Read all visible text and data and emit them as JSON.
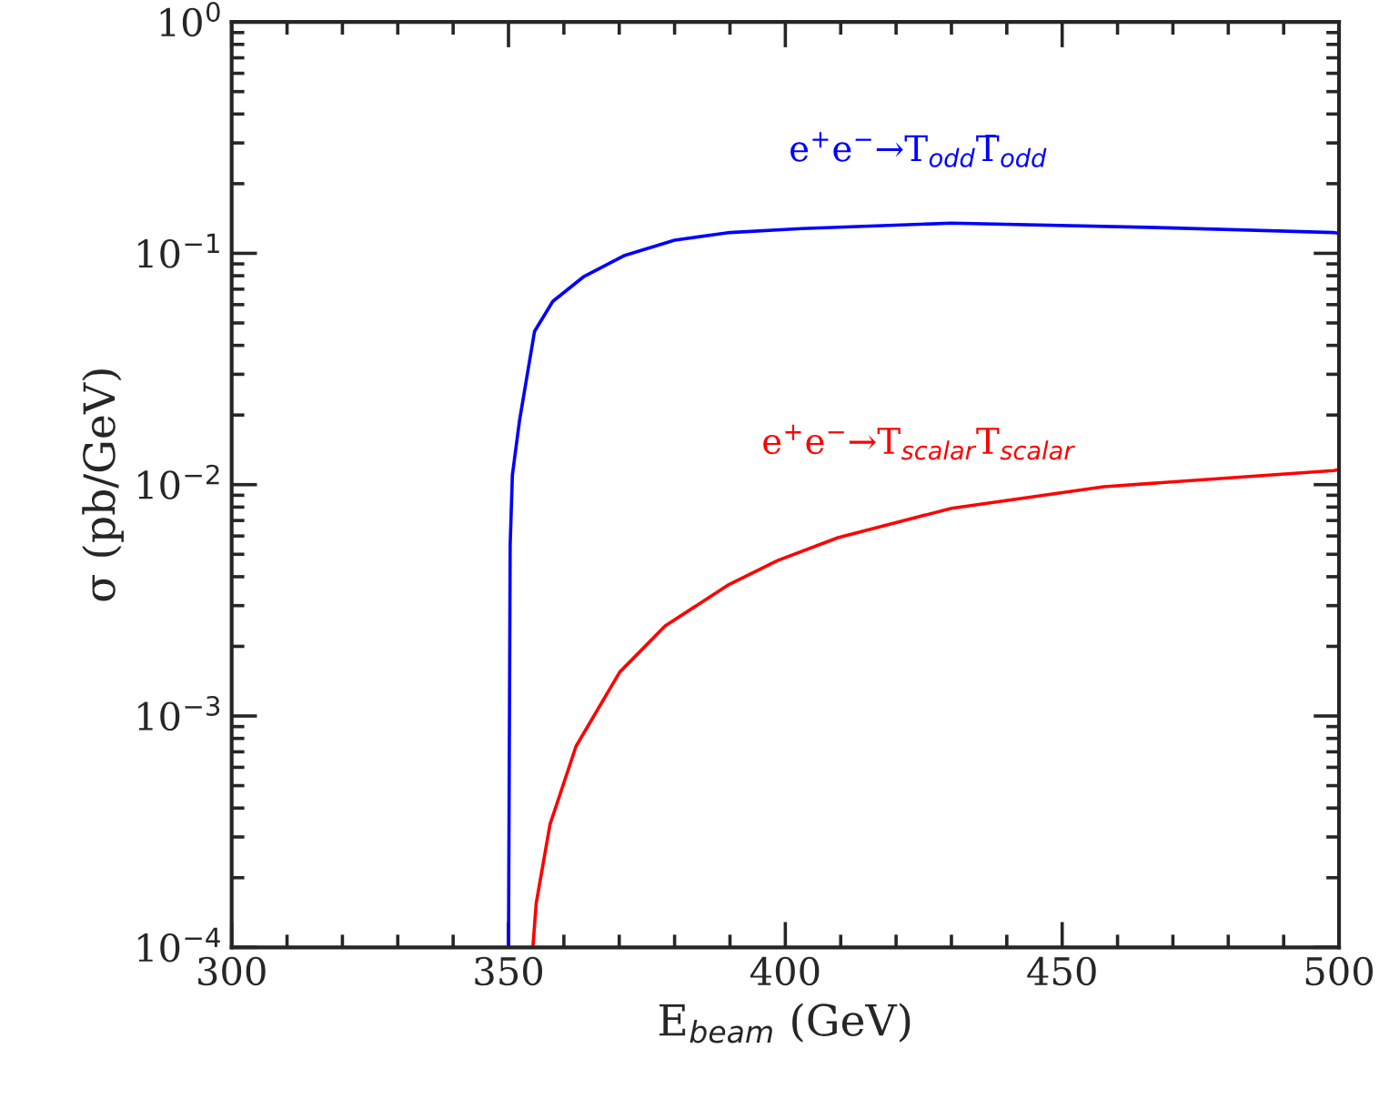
{
  "chart_data": {
    "type": "line",
    "xlabel": "E$_{beam}$ (GeV)",
    "ylabel": "σ (pb/GeV)",
    "log": "y",
    "xlim": [
      300,
      500
    ],
    "xticks": [
      300,
      350,
      400,
      450,
      500
    ],
    "ylim": [
      0.0001,
      1
    ],
    "yticks": [
      {
        "value": 0.0001,
        "label": "10$^{−4}$"
      },
      {
        "value": 0.001,
        "label": "10$^{−3}$"
      },
      {
        "value": 0.01,
        "label": "10$^{−2}$"
      },
      {
        "value": 0.1,
        "label": "10$^{−1}$"
      },
      {
        "value": 1,
        "label": "10$^{0}$"
      }
    ],
    "grid": false,
    "legend": false,
    "line_style": "solid",
    "marker": "none",
    "series": [
      {
        "name": "e$^{+}$e$^{−}$→T$_{odd}$T̄$_{odd}$",
        "color": "#0000ff",
        "x": [
          350.0,
          350.3,
          350.7,
          352.0,
          354.7,
          358.0,
          363.5,
          371.0,
          380.0,
          390.0,
          403.0,
          430.0,
          468.6,
          499.0,
          500.0
        ],
        "values": [
          0.0001,
          0.0055,
          0.011,
          0.019,
          0.046,
          0.062,
          0.079,
          0.098,
          0.114,
          0.123,
          0.128,
          0.135,
          0.129,
          0.123,
          0.122
        ]
      },
      {
        "name": "e$^{+}$e$^{−}$→T$_{scalar}$T$_{scalar}$",
        "color": "#ff0000",
        "x": [
          354.4,
          355.0,
          357.5,
          362.2,
          370.1,
          378.3,
          389.8,
          398.6,
          409.5,
          430.0,
          457.5,
          499.0,
          500.0
        ],
        "values": [
          0.0001,
          0.000155,
          0.00034,
          0.00074,
          0.00155,
          0.00245,
          0.0037,
          0.0047,
          0.0059,
          0.0079,
          0.0098,
          0.0115,
          0.0116
        ]
      }
    ]
  }
}
